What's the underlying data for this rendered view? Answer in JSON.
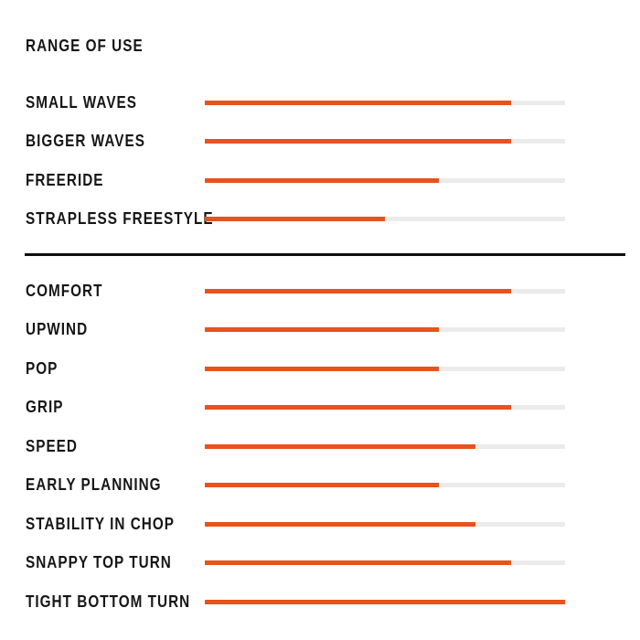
{
  "title": "RANGE OF USE",
  "colors": {
    "bar_fill": "#e6531d",
    "bar_track": "#ebebeb",
    "text": "#161616",
    "divider": "#0d0d0d",
    "background": "#ffffff"
  },
  "chart_data": {
    "type": "bar",
    "orientation": "horizontal",
    "title": "RANGE OF USE",
    "xlim": [
      0,
      1
    ],
    "grid": false,
    "legend": false,
    "groups": [
      {
        "name": "range-of-use",
        "items": [
          {
            "label": "SMALL WAVES",
            "value": 0.85
          },
          {
            "label": "BIGGER WAVES",
            "value": 0.85
          },
          {
            "label": "FREERIDE",
            "value": 0.65
          },
          {
            "label": "STRAPLESS FREESTYLE",
            "value": 0.5
          }
        ]
      },
      {
        "name": "performance",
        "items": [
          {
            "label": "COMFORT",
            "value": 0.85
          },
          {
            "label": "UPWIND",
            "value": 0.65
          },
          {
            "label": "POP",
            "value": 0.65
          },
          {
            "label": "GRIP",
            "value": 0.85
          },
          {
            "label": "SPEED",
            "value": 0.75
          },
          {
            "label": "EARLY PLANNING",
            "value": 0.65
          },
          {
            "label": "STABILITY IN CHOP",
            "value": 0.75
          },
          {
            "label": "SNAPPY TOP TURN",
            "value": 0.85
          },
          {
            "label": "TIGHT BOTTOM TURN",
            "value": 1.0
          }
        ]
      }
    ]
  }
}
